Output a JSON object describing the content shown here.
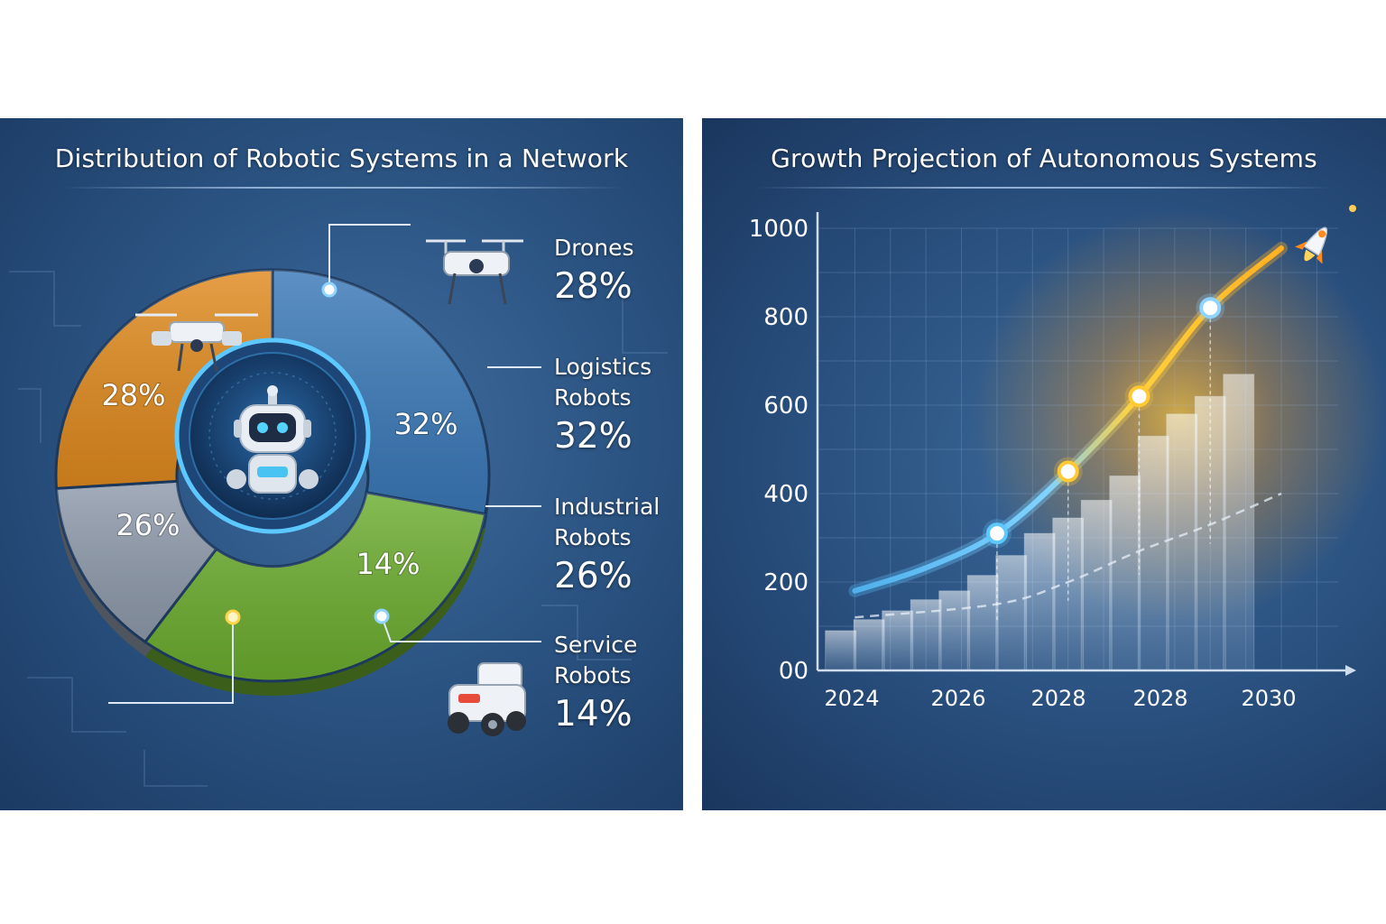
{
  "panels": {
    "left": {
      "title": "Distribution of Robotic Systems in a Network"
    },
    "right": {
      "title": "Growth Projection of Autonomous Systems"
    }
  },
  "legend": [
    {
      "name": "Drones",
      "pct": "28%"
    },
    {
      "name": "Logistics Robots",
      "pct": "32%"
    },
    {
      "name": "Industrial Robots",
      "pct": "26%"
    },
    {
      "name": "Service Robots",
      "pct": "14%"
    }
  ],
  "icons": {
    "center": "robot-head-icon",
    "pie_drone": "drone-icon",
    "legend_drone": "drone-icon",
    "legend_service": "service-robot-icon",
    "rocket": "rocket-icon"
  },
  "colors": {
    "drones": "#3a79b8",
    "logistics": "#6cad2f",
    "industrial": "#e08a1e",
    "service": "#8e9aab",
    "line_start": "#4fb0ec",
    "line_end": "#ffb020"
  },
  "chart_data": [
    {
      "type": "pie",
      "slices": [
        {
          "label": "Drones",
          "value": 28,
          "value_label": "28%"
        },
        {
          "label": "Logistics Robots",
          "value": 32,
          "value_label": "32%"
        },
        {
          "label": "Service Robots",
          "value": 14,
          "value_label": "14%"
        },
        {
          "label": "Industrial Robots",
          "value": 26,
          "value_label": "26%"
        }
      ]
    },
    {
      "type": "line",
      "y_ticks": [
        0,
        200,
        400,
        600,
        800,
        1000
      ],
      "y_tick_labels": [
        "00",
        "200",
        "400",
        "600",
        "800",
        "1000"
      ],
      "x_tick_labels": [
        "2024",
        "2026",
        "2028",
        "2028",
        "2030"
      ],
      "ylim": [
        0,
        1000
      ],
      "grid": true,
      "line_points": [
        {
          "x": 2024,
          "y": 180
        },
        {
          "x": 2025,
          "y": 232
        },
        {
          "x": 2026,
          "y": 310
        },
        {
          "x": 2027,
          "y": 450
        },
        {
          "x": 2028,
          "y": 620
        },
        {
          "x": 2029,
          "y": 820
        },
        {
          "x": 2030,
          "y": 955
        }
      ],
      "markers": [
        {
          "x": 2026,
          "y": 310
        },
        {
          "x": 2027,
          "y": 450
        },
        {
          "x": 2028,
          "y": 620
        },
        {
          "x": 2029,
          "y": 820
        }
      ],
      "trend_points": [
        {
          "x": 2024,
          "y": 120
        },
        {
          "x": 2026,
          "y": 150
        },
        {
          "x": 2027,
          "y": 200
        },
        {
          "x": 2028,
          "y": 270
        },
        {
          "x": 2029,
          "y": 330
        },
        {
          "x": 2030,
          "y": 400
        }
      ],
      "bars": [
        {
          "x": 2023.8,
          "y": 90
        },
        {
          "x": 2024.2,
          "y": 115
        },
        {
          "x": 2024.6,
          "y": 135
        },
        {
          "x": 2025.0,
          "y": 160
        },
        {
          "x": 2025.4,
          "y": 180
        },
        {
          "x": 2025.8,
          "y": 215
        },
        {
          "x": 2026.2,
          "y": 260
        },
        {
          "x": 2026.6,
          "y": 310
        },
        {
          "x": 2027.0,
          "y": 345
        },
        {
          "x": 2027.4,
          "y": 385
        },
        {
          "x": 2027.8,
          "y": 440
        },
        {
          "x": 2028.2,
          "y": 530
        },
        {
          "x": 2028.6,
          "y": 580
        },
        {
          "x": 2029.0,
          "y": 620
        },
        {
          "x": 2029.4,
          "y": 670
        }
      ]
    }
  ]
}
